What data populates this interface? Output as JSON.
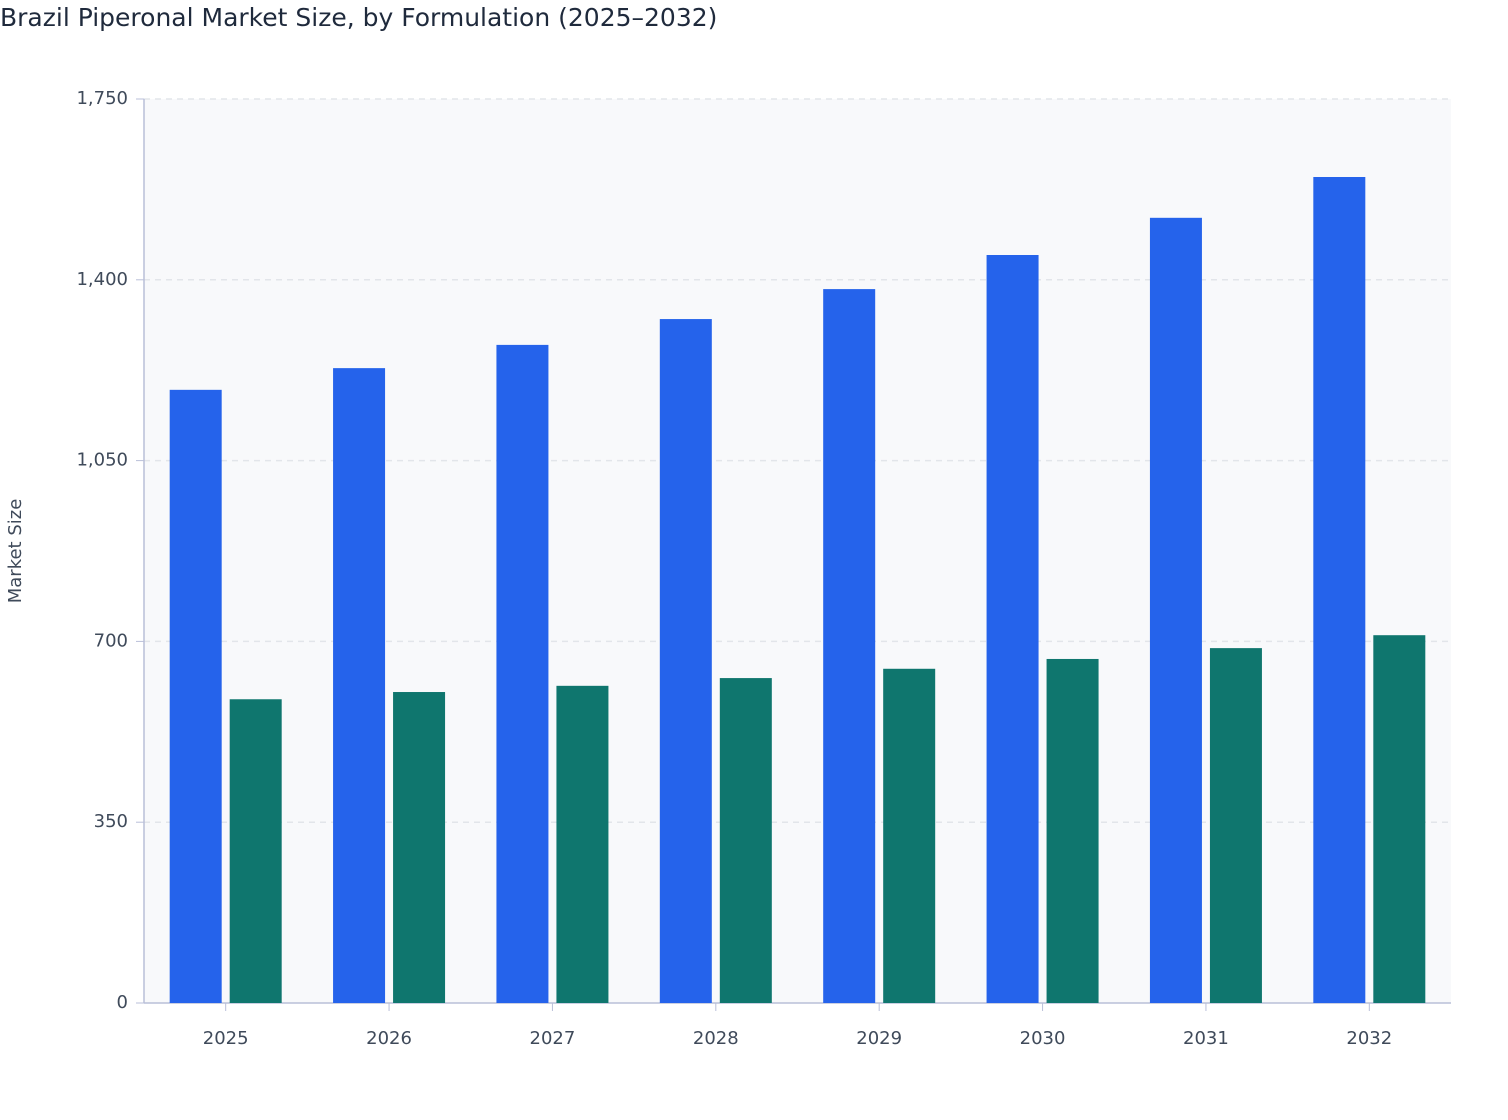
{
  "chart_data": {
    "type": "bar",
    "title": "Brazil Piperonal Market Size, by Formulation (2025–2032)",
    "y_label": "Market Size",
    "categories": [
      "2025",
      "2026",
      "2027",
      "2028",
      "2029",
      "2030",
      "2031",
      "2032"
    ],
    "series": [
      {
        "color": "#2563eb",
        "values": [
          1187,
          1229,
          1274,
          1324,
          1382,
          1448,
          1520,
          1599
        ]
      },
      {
        "color": "#0f766e",
        "values": [
          588,
          602,
          614,
          629,
          647,
          666,
          687,
          712
        ]
      }
    ],
    "ylim": [
      0,
      1750
    ],
    "yticks": [
      0,
      350,
      700,
      {
        "value": 1050,
        "label": "1,050"
      },
      {
        "value": 1400,
        "label": "1,400"
      },
      {
        "value": 1750,
        "label": "1,750"
      }
    ],
    "grid": true
  }
}
